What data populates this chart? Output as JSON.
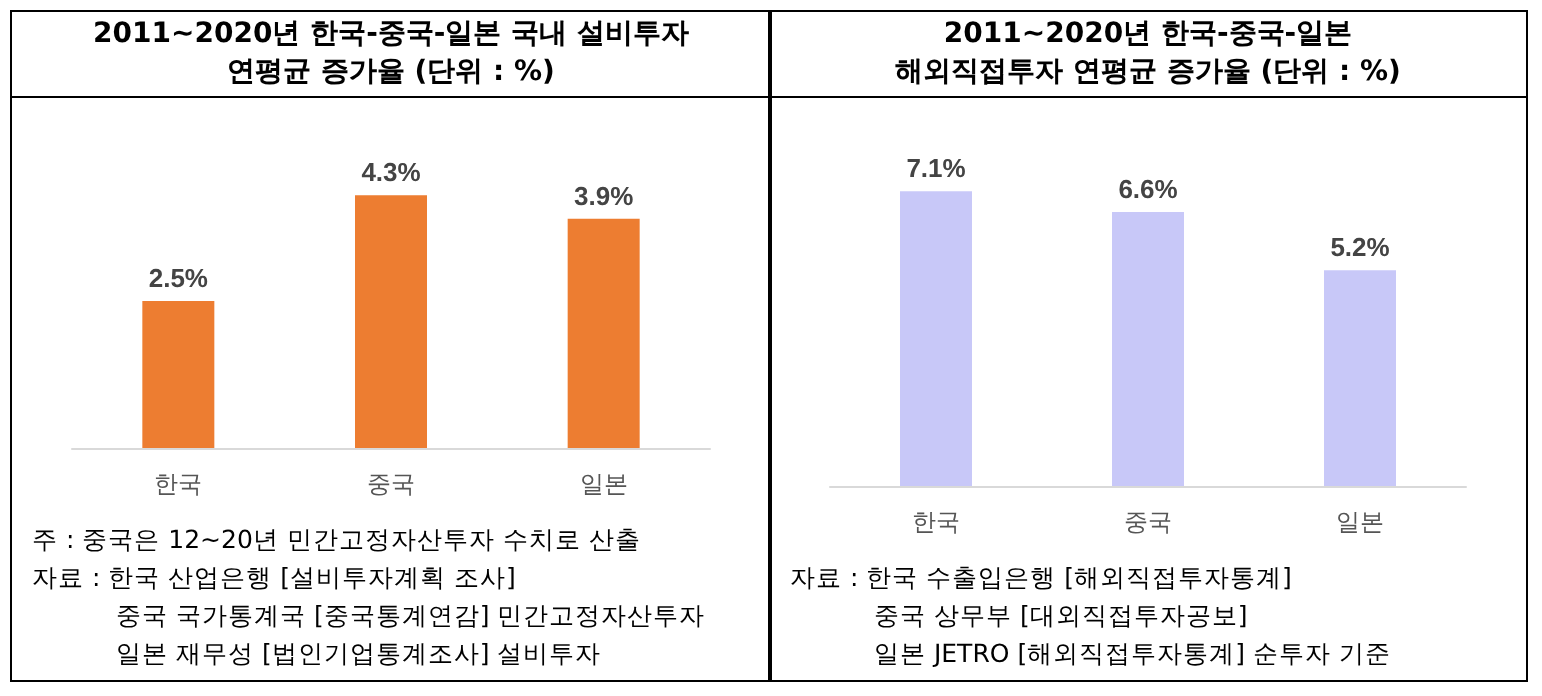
{
  "chart_data": [
    {
      "type": "bar",
      "title": "2011~2020년 한국-중국-일본 국내 설비투자\n연평균 증가율 (단위 : %)",
      "categories": [
        "한국",
        "중국",
        "일본"
      ],
      "values": [
        2.5,
        4.3,
        3.9
      ],
      "color": "#ed7d31",
      "value_labels": [
        "2.5%",
        "4.3%",
        "3.9%"
      ],
      "annotations": [
        "주 : 중국은 12~20년 민간고정자산투자 수치로 산출",
        "자료 : 한국 산업은행 [설비투자계획 조사]",
        "중국 국가통계국 [중국통계연감] 민간고정자산투자",
        "일본 재무성 [법인기업통계조사] 설비투자"
      ]
    },
    {
      "type": "bar",
      "title": "2011~2020년 한국-중국-일본\n해외직접투자 연평균 증가율 (단위 : %)",
      "categories": [
        "한국",
        "중국",
        "일본"
      ],
      "values": [
        7.1,
        6.6,
        5.2
      ],
      "color": "#c8c8f8",
      "value_labels": [
        "7.1%",
        "6.6%",
        "5.2%"
      ],
      "annotations": [
        "자료 : 한국 수출입은행 [해외직접투자통계]",
        "중국 상무부 [대외직접투자공보]",
        "일본 JETRO [해외직접투자통계] 순투자 기준"
      ]
    }
  ]
}
